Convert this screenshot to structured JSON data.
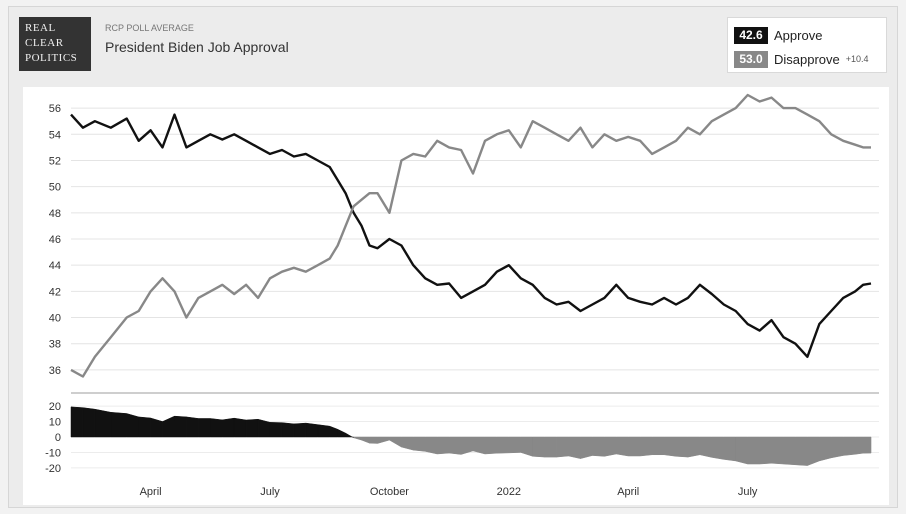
{
  "header": {
    "eyebrow": "RCP POLL AVERAGE",
    "title": "President Biden Job Approval",
    "logo_lines": [
      "REAL",
      "CLEAR",
      "POLITICS"
    ]
  },
  "legend": {
    "approve": {
      "value": "42.6",
      "label": "Approve",
      "color": "#111111"
    },
    "disapprove": {
      "value": "53.0",
      "label": "Disapprove",
      "color": "#888888"
    },
    "spread": "+10.4"
  },
  "chart_data": {
    "type": "line",
    "title": "President Biden Job Approval",
    "ylim": [
      35,
      57
    ],
    "yticks": [
      "36",
      "38",
      "40",
      "42",
      "44",
      "46",
      "48",
      "50",
      "52",
      "54",
      "56"
    ],
    "spread_ylim": [
      -22,
      22
    ],
    "spread_ticks": [
      "20",
      "10",
      "0",
      "-10",
      "-20"
    ],
    "xlim": [
      0,
      20.3
    ],
    "x_tick_labels": [
      {
        "label": "April",
        "x": 2
      },
      {
        "label": "July",
        "x": 5
      },
      {
        "label": "October",
        "x": 8
      },
      {
        "label": "2022",
        "x": 11
      },
      {
        "label": "April",
        "x": 14
      },
      {
        "label": "July",
        "x": 17
      }
    ],
    "grid": true,
    "series": [
      {
        "name": "Approve",
        "color": "#111111",
        "x": [
          0,
          0.3,
          0.6,
          1.0,
          1.4,
          1.7,
          2.0,
          2.3,
          2.6,
          2.9,
          3.2,
          3.5,
          3.8,
          4.1,
          4.4,
          4.7,
          5.0,
          5.3,
          5.6,
          5.9,
          6.2,
          6.5,
          6.7,
          6.9,
          7.1,
          7.3,
          7.5,
          7.7,
          8.0,
          8.3,
          8.6,
          8.9,
          9.2,
          9.5,
          9.8,
          10.1,
          10.4,
          10.7,
          11.0,
          11.3,
          11.6,
          11.9,
          12.2,
          12.5,
          12.8,
          13.1,
          13.4,
          13.7,
          14.0,
          14.3,
          14.6,
          14.9,
          15.2,
          15.5,
          15.8,
          16.1,
          16.4,
          16.7,
          17.0,
          17.3,
          17.6,
          17.9,
          18.2,
          18.5,
          18.8,
          19.1,
          19.4,
          19.7,
          19.9,
          20.1
        ],
        "values": [
          55.5,
          54.5,
          55.0,
          54.5,
          55.2,
          53.5,
          54.3,
          53.0,
          55.5,
          53.0,
          53.5,
          54.0,
          53.6,
          54.0,
          53.5,
          53.0,
          52.5,
          52.8,
          52.3,
          52.5,
          52.0,
          51.5,
          50.5,
          49.5,
          48.0,
          47.0,
          45.5,
          45.3,
          46.0,
          45.5,
          44.0,
          43.0,
          42.5,
          42.6,
          41.5,
          42.0,
          42.5,
          43.5,
          44.0,
          43.0,
          42.5,
          41.5,
          41.0,
          41.2,
          40.5,
          41.0,
          41.5,
          42.5,
          41.5,
          41.2,
          41.0,
          41.5,
          41.0,
          41.5,
          42.5,
          41.8,
          41.0,
          40.5,
          39.5,
          39.0,
          39.8,
          38.5,
          38.0,
          37.0,
          39.5,
          40.5,
          41.5,
          42.0,
          42.5,
          42.6
        ]
      },
      {
        "name": "Disapprove",
        "color": "#888888",
        "x": [
          0,
          0.3,
          0.6,
          1.0,
          1.4,
          1.7,
          2.0,
          2.3,
          2.6,
          2.9,
          3.2,
          3.5,
          3.8,
          4.1,
          4.4,
          4.7,
          5.0,
          5.3,
          5.6,
          5.9,
          6.2,
          6.5,
          6.7,
          6.9,
          7.1,
          7.3,
          7.5,
          7.7,
          8.0,
          8.3,
          8.6,
          8.9,
          9.2,
          9.5,
          9.8,
          10.1,
          10.4,
          10.7,
          11.0,
          11.3,
          11.6,
          11.9,
          12.2,
          12.5,
          12.8,
          13.1,
          13.4,
          13.7,
          14.0,
          14.3,
          14.6,
          14.9,
          15.2,
          15.5,
          15.8,
          16.1,
          16.4,
          16.7,
          17.0,
          17.3,
          17.6,
          17.9,
          18.2,
          18.5,
          18.8,
          19.1,
          19.4,
          19.7,
          19.9,
          20.1
        ],
        "values": [
          36.0,
          35.5,
          37.0,
          38.5,
          40.0,
          40.5,
          42.0,
          43.0,
          42.0,
          40.0,
          41.5,
          42.0,
          42.5,
          41.8,
          42.5,
          41.5,
          43.0,
          43.5,
          43.8,
          43.5,
          44.0,
          44.5,
          45.5,
          47.0,
          48.5,
          49.0,
          49.5,
          49.5,
          48.0,
          52.0,
          52.5,
          52.3,
          53.5,
          53.0,
          52.8,
          51.0,
          53.5,
          54.0,
          54.3,
          53.0,
          55.0,
          54.5,
          54.0,
          53.5,
          54.5,
          53.0,
          54.0,
          53.5,
          53.8,
          53.5,
          52.5,
          53.0,
          53.5,
          54.5,
          54.0,
          55.0,
          55.5,
          56.0,
          57.0,
          56.5,
          56.8,
          56.0,
          56.0,
          55.5,
          55.0,
          54.0,
          53.5,
          53.2,
          53.0,
          53.0
        ]
      }
    ]
  }
}
